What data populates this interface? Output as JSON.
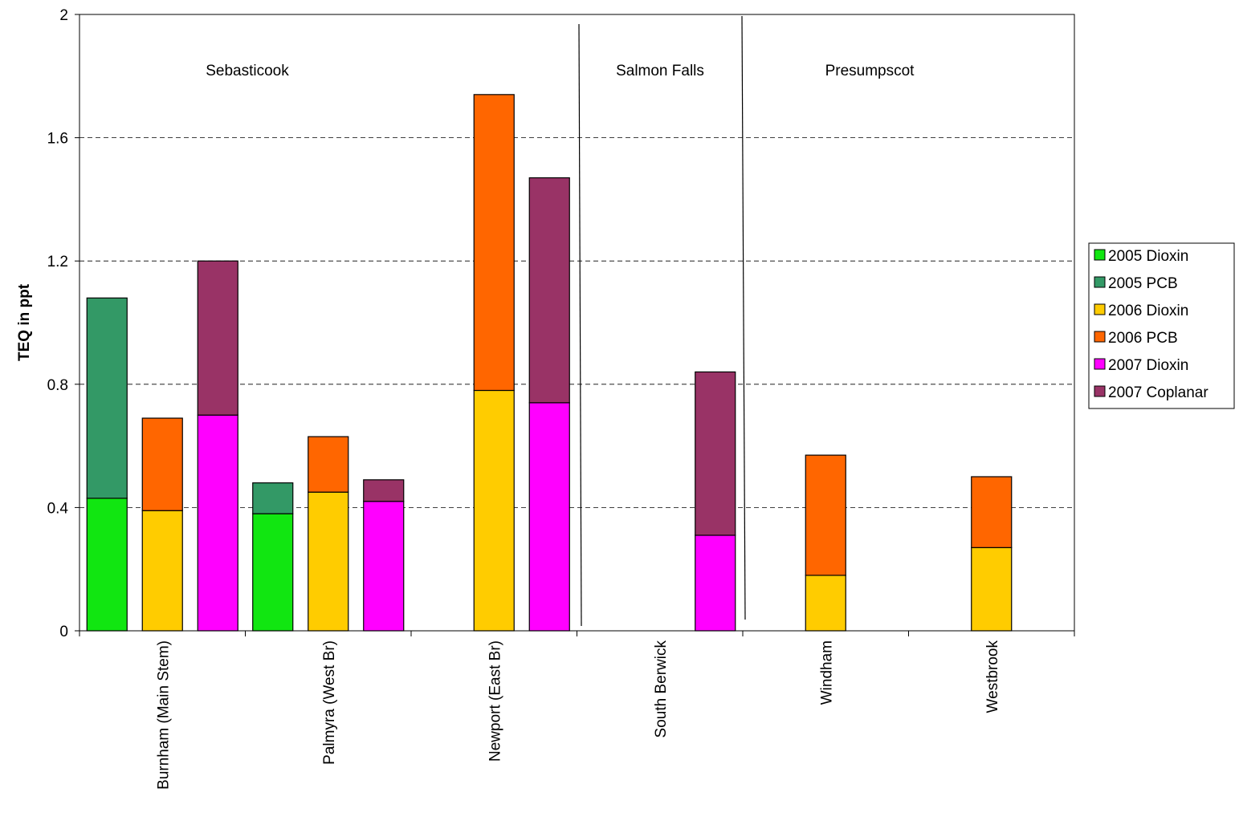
{
  "chart_data": {
    "type": "bar",
    "y_label": "TEQ in ppt",
    "categories": [
      "Burnham (Main Stem)",
      "Palmyra (West Br)",
      "Newport (East Br)",
      "South Berwick",
      "Windham",
      "Westbrook"
    ],
    "group_labels": [
      "Sebasticook",
      "Salmon Falls",
      "Presumpscot"
    ],
    "series": [
      {
        "name": "2005 Dioxin",
        "color": "#11e611",
        "values": [
          0.43,
          0.38,
          null,
          null,
          null,
          null
        ]
      },
      {
        "name": "2005 PCB",
        "color": "#339966",
        "values": [
          0.65,
          0.1,
          null,
          null,
          null,
          null
        ]
      },
      {
        "name": "2006 Dioxin",
        "color": "#ffcc00",
        "values": [
          0.39,
          0.45,
          0.78,
          null,
          0.18,
          0.27
        ]
      },
      {
        "name": "2006 PCB",
        "color": "#ff6600",
        "values": [
          0.3,
          0.18,
          0.96,
          null,
          0.39,
          0.23
        ]
      },
      {
        "name": "2007 Dioxin",
        "color": "#ff00ff",
        "values": [
          0.7,
          0.42,
          0.74,
          0.31,
          null,
          null
        ]
      },
      {
        "name": "2007 Coplanar",
        "color": "#993366",
        "values": [
          0.5,
          0.07,
          0.73,
          0.53,
          null,
          null
        ]
      }
    ],
    "ylim": [
      0,
      2
    ],
    "yticks": [
      0,
      0.4,
      0.8,
      1.2,
      1.6,
      2
    ],
    "grid": true
  }
}
